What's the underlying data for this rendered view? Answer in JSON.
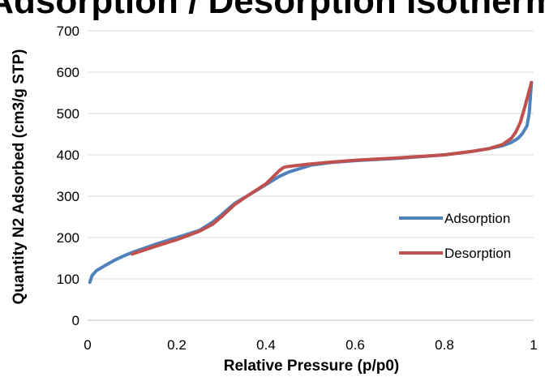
{
  "chart_data": {
    "type": "line",
    "title": "Adsorption / Desorption Isotherm",
    "xlabel": "Relative Pressure (p/p0)",
    "ylabel": "Quantity N2 Adsorbed (cm3/g  STP)",
    "xlim": [
      0,
      1
    ],
    "ylim": [
      0,
      700
    ],
    "x_ticks": [
      "0",
      "0.2",
      "0.4",
      "0.6",
      "0.8",
      "1"
    ],
    "y_ticks": [
      "0",
      "100",
      "200",
      "300",
      "400",
      "500",
      "600",
      "700"
    ],
    "grid": "horizontal",
    "legend_position": "right",
    "series": [
      {
        "name": "Adsorption",
        "color": "#4f81bd",
        "x": [
          0.005,
          0.01,
          0.02,
          0.04,
          0.06,
          0.08,
          0.1,
          0.15,
          0.2,
          0.25,
          0.28,
          0.3,
          0.33,
          0.36,
          0.4,
          0.43,
          0.45,
          0.5,
          0.55,
          0.6,
          0.7,
          0.8,
          0.86,
          0.9,
          0.93,
          0.95,
          0.965,
          0.975,
          0.985,
          0.99,
          0.995
        ],
        "y": [
          92,
          108,
          120,
          133,
          145,
          155,
          164,
          183,
          200,
          217,
          237,
          255,
          283,
          302,
          328,
          348,
          358,
          375,
          382,
          386,
          392,
          400,
          408,
          415,
          422,
          430,
          440,
          452,
          470,
          500,
          575
        ]
      },
      {
        "name": "Desorption",
        "color": "#c0504d",
        "x": [
          0.1,
          0.15,
          0.2,
          0.25,
          0.28,
          0.3,
          0.33,
          0.36,
          0.4,
          0.43,
          0.44,
          0.45,
          0.5,
          0.55,
          0.6,
          0.7,
          0.8,
          0.86,
          0.9,
          0.93,
          0.95,
          0.96,
          0.97,
          0.98,
          0.99,
          0.995
        ],
        "y": [
          160,
          178,
          195,
          215,
          232,
          250,
          280,
          302,
          330,
          362,
          370,
          372,
          378,
          383,
          387,
          393,
          400,
          408,
          415,
          425,
          440,
          455,
          478,
          515,
          555,
          575
        ]
      }
    ]
  }
}
